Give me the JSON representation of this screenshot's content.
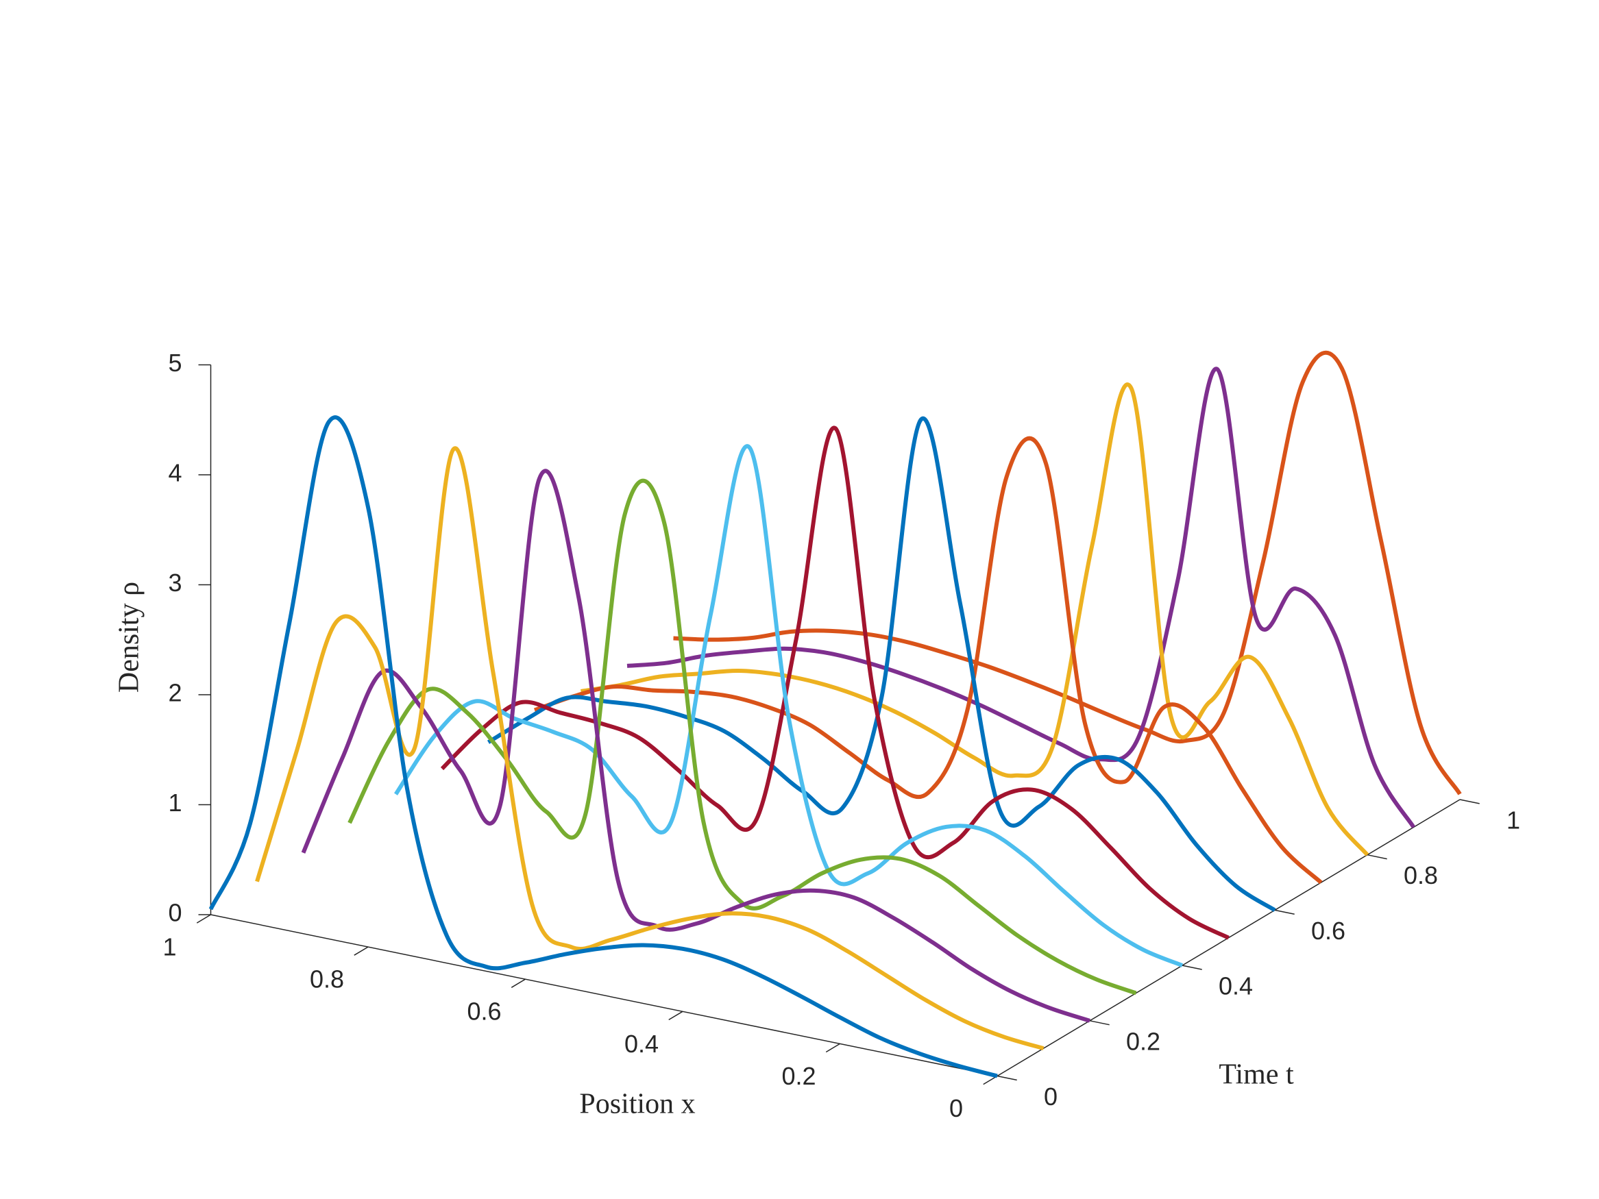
{
  "chart_data": {
    "type": "waterfall3d",
    "xlabel": "Position x",
    "ylabel": "Time t",
    "zlabel": "Density ρ",
    "xlim": [
      0,
      1
    ],
    "ylim": [
      0,
      1
    ],
    "zlim": [
      0,
      5
    ],
    "xticks": [
      0,
      0.2,
      0.4,
      0.6,
      0.8,
      1
    ],
    "yticks": [
      0,
      0.2,
      0.4,
      0.6,
      0.8,
      1
    ],
    "zticks": [
      0,
      1,
      2,
      3,
      4,
      5
    ],
    "x": [
      0,
      0.05,
      0.1,
      0.15,
      0.2,
      0.25,
      0.3,
      0.35,
      0.4,
      0.45,
      0.5,
      0.55,
      0.6,
      0.65,
      0.7,
      0.75,
      0.8,
      0.85,
      0.9,
      0.95,
      1
    ],
    "series": [
      {
        "t": 0,
        "color": "#0072BD",
        "values": [
          0,
          0.02,
          0.06,
          0.13,
          0.24,
          0.36,
          0.47,
          0.55,
          0.57,
          0.53,
          0.43,
          0.3,
          0.15,
          0.04,
          0.25,
          1.5,
          4.0,
          4.7,
          2.8,
          0.9,
          0.05
        ]
      },
      {
        "t": 0.1,
        "color": "#EDB120",
        "values": [
          0,
          0.03,
          0.1,
          0.22,
          0.37,
          0.52,
          0.64,
          0.68,
          0.64,
          0.52,
          0.36,
          0.18,
          0.04,
          0.35,
          2.4,
          4.35,
          1.55,
          2.4,
          2.55,
          1.3,
          0.05
        ]
      },
      {
        "t": 0.2,
        "color": "#7E2F8E",
        "values": [
          0,
          0.04,
          0.12,
          0.25,
          0.42,
          0.57,
          0.68,
          0.67,
          0.56,
          0.37,
          0.15,
          0.05,
          0.4,
          2.9,
          3.9,
          0.85,
          1.1,
          1.6,
          1.85,
          1.0,
          0.06
        ]
      },
      {
        "t": 0.3,
        "color": "#77AC30",
        "values": [
          0,
          0.05,
          0.15,
          0.3,
          0.5,
          0.7,
          0.78,
          0.7,
          0.5,
          0.22,
          0.08,
          0.75,
          3.4,
          3.4,
          0.6,
          0.55,
          0.95,
          1.3,
          1.44,
          0.9,
          0.08
        ]
      },
      {
        "t": 0.4,
        "color": "#4DBEEE",
        "values": [
          0,
          0.07,
          0.22,
          0.45,
          0.7,
          0.86,
          0.82,
          0.6,
          0.25,
          0.2,
          1.5,
          3.9,
          2.3,
          0.35,
          0.51,
          0.86,
          0.95,
          1.0,
          1.08,
          0.7,
          0.09
        ]
      },
      {
        "t": 0.5,
        "color": "#A2142F",
        "values": [
          0,
          0.1,
          0.3,
          0.6,
          0.88,
          0.98,
          0.8,
          0.35,
          0.25,
          1.5,
          3.9,
          1.9,
          0.2,
          0.25,
          0.5,
          0.72,
          0.78,
          0.8,
          0.82,
          0.5,
          0.07
        ]
      },
      {
        "t": 0.6,
        "color": "#0072BD",
        "values": [
          0,
          0.15,
          0.45,
          0.85,
          1.08,
          0.95,
          0.5,
          0.4,
          2.2,
          3.8,
          1.2,
          0.12,
          0.2,
          0.42,
          0.6,
          0.66,
          0.68,
          0.65,
          0.61,
          0.35,
          0.06
        ]
      },
      {
        "t": 0.7,
        "color": "#D95319",
        "values": [
          0,
          0.25,
          0.7,
          1.2,
          1.3,
          0.55,
          1.0,
          3.3,
          3.1,
          0.9,
          0.08,
          0.12,
          0.3,
          0.48,
          0.56,
          0.59,
          0.56,
          0.5,
          0.46,
          0.3,
          0.1
        ]
      },
      {
        "t": 0.8,
        "color": "#EDB120",
        "values": [
          0,
          0.35,
          1.1,
          1.58,
          1.1,
          0.9,
          3.8,
          2.3,
          0.4,
          0.06,
          0.15,
          0.3,
          0.42,
          0.5,
          0.54,
          0.54,
          0.5,
          0.4,
          0.3,
          0.15,
          0.02
        ]
      },
      {
        "t": 0.9,
        "color": "#7E2F8E",
        "values": [
          0,
          0.5,
          1.6,
          1.95,
          1.6,
          3.8,
          1.8,
          0.3,
          0.03,
          0.1,
          0.2,
          0.3,
          0.38,
          0.44,
          0.48,
          0.49,
          0.45,
          0.35,
          0.24,
          0.1,
          0
        ]
      },
      {
        "t": 1,
        "color": "#D95319",
        "values": [
          0.05,
          0.6,
          2.2,
          3.7,
          3.5,
          1.8,
          0.35,
          0.02,
          0.05,
          0.12,
          0.2,
          0.27,
          0.33,
          0.37,
          0.4,
          0.4,
          0.36,
          0.28,
          0.15,
          0.06,
          0
        ]
      }
    ]
  }
}
